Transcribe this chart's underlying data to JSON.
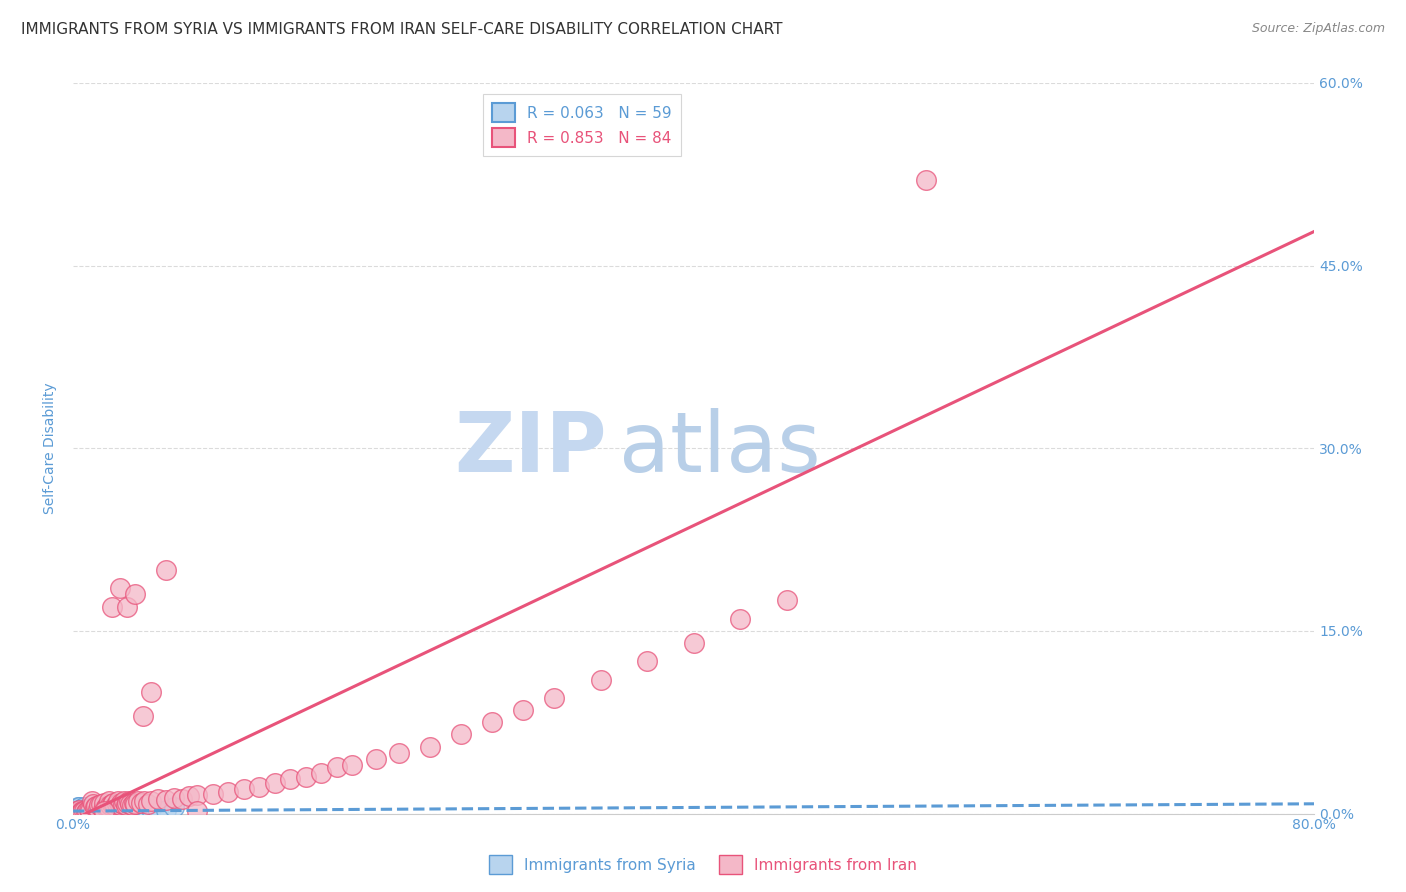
{
  "title": "IMMIGRANTS FROM SYRIA VS IMMIGRANTS FROM IRAN SELF-CARE DISABILITY CORRELATION CHART",
  "source": "Source: ZipAtlas.com",
  "ylabel": "Self-Care Disability",
  "xlim": [
    0.0,
    0.8
  ],
  "ylim": [
    0.0,
    0.6
  ],
  "xticks": [
    0.0,
    0.2,
    0.4,
    0.6,
    0.8
  ],
  "xticklabels": [
    "0.0%",
    "",
    "",
    "",
    "80.0%"
  ],
  "yticks": [
    0.0,
    0.15,
    0.3,
    0.45,
    0.6
  ],
  "yticklabels_right": [
    "0.0%",
    "15.0%",
    "30.0%",
    "45.0%",
    "60.0%"
  ],
  "grid_color": "#cccccc",
  "background_color": "#ffffff",
  "watermark_zip": "ZIP",
  "watermark_atlas": "atlas",
  "series": [
    {
      "name": "Immigrants from Syria",
      "R": 0.063,
      "N": 59,
      "color": "#b8d4ee",
      "line_color": "#5b9bd5",
      "line_style": "--",
      "marker_facecolor": "#b8d4ee",
      "marker_edgecolor": "#5b9bd5",
      "scatter_x": [
        0.001,
        0.001,
        0.002,
        0.002,
        0.002,
        0.003,
        0.003,
        0.003,
        0.004,
        0.004,
        0.004,
        0.005,
        0.005,
        0.005,
        0.006,
        0.006,
        0.006,
        0.007,
        0.007,
        0.007,
        0.008,
        0.008,
        0.009,
        0.009,
        0.01,
        0.01,
        0.011,
        0.012,
        0.012,
        0.013,
        0.014,
        0.015,
        0.015,
        0.016,
        0.017,
        0.018,
        0.019,
        0.02,
        0.021,
        0.022,
        0.023,
        0.024,
        0.025,
        0.026,
        0.027,
        0.028,
        0.03,
        0.032,
        0.034,
        0.036,
        0.038,
        0.04,
        0.042,
        0.045,
        0.048,
        0.05,
        0.055,
        0.06,
        0.065
      ],
      "scatter_y": [
        0.002,
        0.003,
        0.001,
        0.003,
        0.004,
        0.002,
        0.003,
        0.005,
        0.001,
        0.003,
        0.005,
        0.002,
        0.003,
        0.004,
        0.001,
        0.002,
        0.004,
        0.002,
        0.003,
        0.005,
        0.001,
        0.004,
        0.002,
        0.003,
        0.001,
        0.004,
        0.003,
        0.001,
        0.004,
        0.002,
        0.003,
        0.001,
        0.005,
        0.002,
        0.004,
        0.003,
        0.001,
        0.005,
        0.002,
        0.003,
        0.001,
        0.004,
        0.002,
        0.005,
        0.003,
        0.001,
        0.004,
        0.002,
        0.003,
        0.001,
        0.004,
        0.002,
        0.003,
        0.005,
        0.001,
        0.004,
        0.002,
        0.003,
        0.005
      ],
      "trendline": {
        "x0": 0.0,
        "y0": 0.002,
        "x1": 0.8,
        "y1": 0.008
      }
    },
    {
      "name": "Immigrants from Iran",
      "R": 0.853,
      "N": 84,
      "color": "#f4b8c8",
      "line_color": "#e8537a",
      "line_style": "-",
      "marker_facecolor": "#f4b8c8",
      "marker_edgecolor": "#e8537a",
      "scatter_x": [
        0.001,
        0.002,
        0.003,
        0.004,
        0.005,
        0.006,
        0.006,
        0.007,
        0.008,
        0.009,
        0.01,
        0.011,
        0.012,
        0.013,
        0.014,
        0.015,
        0.016,
        0.017,
        0.018,
        0.019,
        0.02,
        0.021,
        0.022,
        0.023,
        0.024,
        0.025,
        0.026,
        0.027,
        0.028,
        0.029,
        0.03,
        0.031,
        0.032,
        0.033,
        0.034,
        0.035,
        0.036,
        0.037,
        0.038,
        0.039,
        0.04,
        0.042,
        0.044,
        0.046,
        0.048,
        0.05,
        0.055,
        0.06,
        0.065,
        0.07,
        0.075,
        0.08,
        0.09,
        0.1,
        0.11,
        0.12,
        0.13,
        0.14,
        0.15,
        0.16,
        0.17,
        0.18,
        0.195,
        0.21,
        0.23,
        0.25,
        0.27,
        0.29,
        0.31,
        0.34,
        0.37,
        0.4,
        0.43,
        0.46,
        0.02,
        0.025,
        0.03,
        0.035,
        0.04,
        0.045,
        0.05,
        0.06,
        0.08,
        0.55
      ],
      "scatter_y": [
        0.001,
        0.002,
        0.001,
        0.003,
        0.001,
        0.002,
        0.001,
        0.002,
        0.001,
        0.002,
        0.003,
        0.002,
        0.01,
        0.008,
        0.005,
        0.006,
        0.004,
        0.007,
        0.008,
        0.003,
        0.009,
        0.005,
        0.006,
        0.01,
        0.007,
        0.008,
        0.009,
        0.006,
        0.008,
        0.01,
        0.007,
        0.009,
        0.008,
        0.01,
        0.007,
        0.009,
        0.01,
        0.008,
        0.007,
        0.009,
        0.008,
        0.01,
        0.009,
        0.01,
        0.008,
        0.01,
        0.012,
        0.011,
        0.013,
        0.012,
        0.014,
        0.015,
        0.016,
        0.018,
        0.02,
        0.022,
        0.025,
        0.028,
        0.03,
        0.033,
        0.038,
        0.04,
        0.045,
        0.05,
        0.055,
        0.065,
        0.075,
        0.085,
        0.095,
        0.11,
        0.125,
        0.14,
        0.16,
        0.175,
        0.002,
        0.17,
        0.185,
        0.17,
        0.18,
        0.08,
        0.1,
        0.2,
        0.002,
        0.52
      ],
      "trendline": {
        "x0": 0.0,
        "y0": -0.005,
        "x1": 0.8,
        "y1": 0.478
      }
    }
  ],
  "legend_entries": [
    {
      "label": "R = 0.063   N = 59",
      "color": "#b8d4ee",
      "edge": "#5b9bd5"
    },
    {
      "label": "R = 0.853   N = 84",
      "color": "#f4b8c8",
      "edge": "#e8537a"
    }
  ],
  "tick_color": "#5b9bd5",
  "axis_label_color": "#5b9bd5",
  "title_color": "#333333",
  "title_fontsize": 11,
  "watermark_color_zip": "#c5d8f0",
  "watermark_color_atlas": "#b8cfe8",
  "watermark_fontsize": 60
}
